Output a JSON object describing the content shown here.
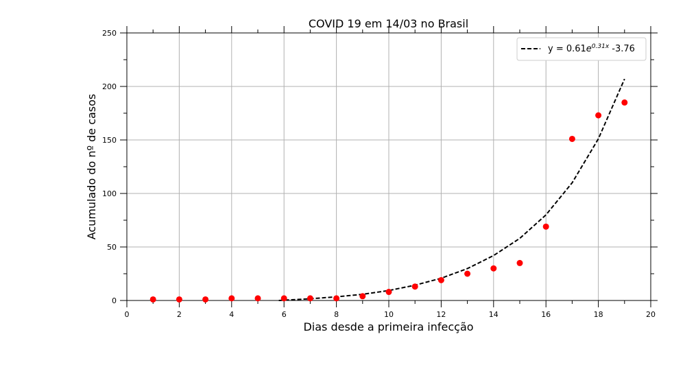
{
  "chart_data": {
    "type": "scatter",
    "title": "COVID 19 em 14/03 no Brasil",
    "xlabel": "Dias desde a primeira infecção",
    "ylabel": "Acumulado do nº de casos",
    "xlim": [
      0,
      20
    ],
    "ylim": [
      0,
      250
    ],
    "xticks": [
      0,
      2,
      4,
      6,
      8,
      10,
      12,
      14,
      16,
      18,
      20
    ],
    "yticks": [
      0,
      50,
      100,
      150,
      200,
      250
    ],
    "grid": true,
    "legend_position": "top-right",
    "legend": {
      "label_prefix": "y = 0.61",
      "label_base": "e",
      "label_exponent": "0.31x",
      "label_suffix": " -3.76"
    },
    "series": [
      {
        "kind": "points",
        "color": "#ff0000",
        "x": [
          1,
          2,
          3,
          4,
          5,
          6,
          7,
          8,
          9,
          10,
          11,
          12,
          13,
          14,
          15,
          16,
          17,
          18,
          19
        ],
        "y": [
          1,
          1,
          1,
          2,
          2,
          2,
          2,
          2,
          4,
          8,
          13,
          19,
          25,
          30,
          35,
          69,
          151,
          173,
          185
        ]
      },
      {
        "kind": "fit",
        "color": "#000000",
        "dash": "dashed",
        "x": [
          5.8,
          7,
          8,
          9,
          10,
          11,
          12,
          13,
          14,
          15,
          16,
          17,
          18,
          19
        ],
        "y": [
          0,
          1.6,
          3.4,
          5.8,
          9.3,
          14.3,
          20.8,
          29.8,
          42,
          58,
          80,
          110,
          151,
          207
        ]
      }
    ]
  }
}
